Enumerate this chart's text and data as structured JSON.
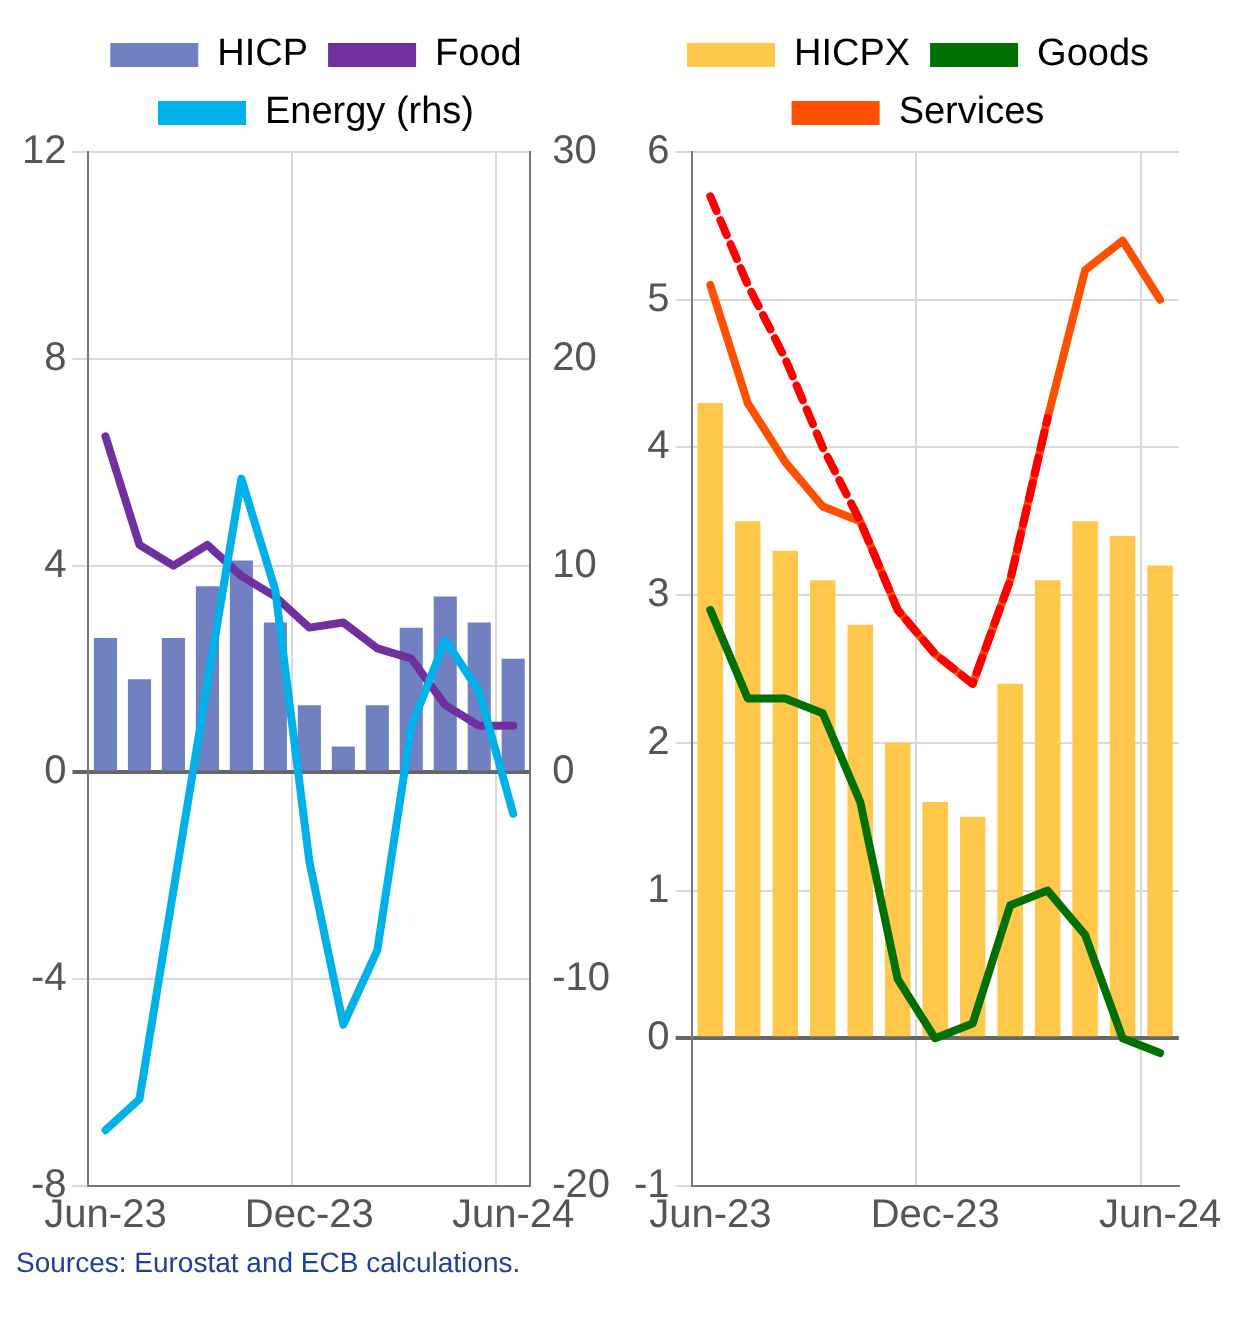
{
  "chart_data": [
    {
      "type": "bar",
      "categories": [
        "Jun-23",
        null,
        null,
        null,
        null,
        null,
        "Dec-23",
        null,
        null,
        null,
        null,
        null,
        "Jun-24"
      ],
      "series": [
        {
          "name": "HICP",
          "color": "#7080c0",
          "values": [
            2.6,
            1.8,
            2.6,
            3.6,
            4.1,
            2.9,
            1.3,
            0.5,
            1.3,
            2.8,
            3.4,
            2.9,
            2.2
          ]
        },
        {
          "name": "Food",
          "type": "line",
          "color": "#7030a0",
          "values": [
            6.5,
            4.4,
            4.0,
            4.4,
            3.8,
            3.4,
            2.8,
            2.9,
            2.4,
            2.2,
            1.3,
            0.9,
            0.9
          ]
        },
        {
          "name": "Energy (rhs)",
          "type": "line",
          "axis": "y2",
          "color": "#00b0e8",
          "values": [
            -17.3,
            -15.8,
            -5.7,
            4.3,
            14.2,
            8.8,
            -4.3,
            -12.2,
            -8.6,
            2.2,
            6.4,
            3.9,
            -2.0
          ]
        }
      ],
      "ylim": [
        -8,
        12
      ],
      "yticks": [
        -8,
        -4,
        0,
        4,
        8,
        12
      ],
      "y2lim": [
        -20,
        30
      ],
      "y2ticks": [
        -20,
        -10,
        0,
        10,
        20,
        30
      ],
      "grid": true,
      "legend": "top",
      "marker": "none",
      "line_style": "solid",
      "annotations": [
        "Sources: Eurostat and ECB calculations."
      ]
    },
    {
      "type": "bar",
      "categories": [
        "Jun-23",
        null,
        null,
        null,
        null,
        null,
        "Dec-23",
        null,
        null,
        null,
        null,
        null,
        "Jun-24"
      ],
      "series": [
        {
          "name": "HICPX",
          "color": "#ffc84a",
          "values": [
            4.3,
            3.5,
            3.3,
            3.1,
            2.8,
            2.0,
            1.6,
            1.5,
            2.4,
            3.1,
            3.5,
            3.4,
            3.2
          ]
        },
        {
          "name": "Goods",
          "type": "line",
          "color": "#007000",
          "values": [
            2.9,
            2.3,
            2.3,
            2.2,
            1.6,
            0.4,
            0.0,
            0.1,
            0.9,
            1.0,
            0.7,
            0.0,
            -0.1
          ]
        },
        {
          "name": "Services",
          "type": "line",
          "color": "#ff5000",
          "values": [
            5.1,
            4.3,
            3.9,
            3.6,
            3.5,
            2.9,
            2.6,
            2.4,
            3.1,
            4.2,
            5.2,
            5.4,
            5.0
          ]
        },
        {
          "type": "line",
          "color": "#ff0000",
          "line_style": "dashed",
          "values": [
            5.7,
            5.1,
            4.6,
            4.0,
            3.5,
            2.9,
            2.6,
            2.4,
            3.1,
            4.2,
            null,
            null,
            null
          ]
        }
      ],
      "ylim": [
        -1,
        6
      ],
      "yticks": [
        -1,
        0,
        1,
        2,
        3,
        4,
        5,
        6
      ],
      "grid": true,
      "legend": "top",
      "marker": "none",
      "line_style": "solid"
    }
  ]
}
